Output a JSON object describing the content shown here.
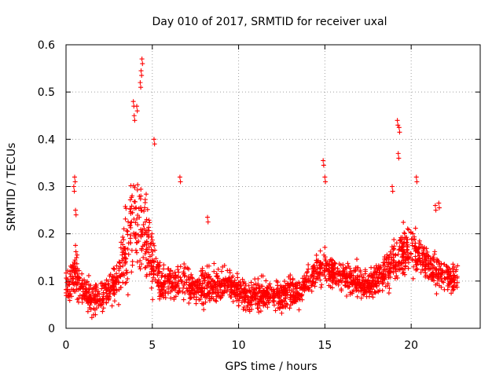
{
  "chart_data": {
    "type": "scatter",
    "title": "Day 010 of 2017, SRMTID for receiver uxal",
    "xlabel": "GPS time / hours",
    "ylabel": "SRMTID / TECUs",
    "xlim": [
      0,
      24
    ],
    "ylim": [
      0,
      0.6
    ],
    "xticks": [
      0,
      5,
      10,
      15,
      20
    ],
    "yticks": [
      0,
      0.1,
      0.2,
      0.3,
      0.4,
      0.5,
      0.6
    ],
    "xtick_labels": [
      "0",
      "5",
      "10",
      "15",
      "20"
    ],
    "ytick_labels": [
      "0",
      "0.1",
      "0.2",
      "0.3",
      "0.4",
      "0.5",
      "0.6"
    ],
    "grid": true,
    "marker": "+",
    "series": [
      {
        "name": "SRMTID",
        "color": "#ff0000",
        "envelope_hours": [
          0,
          0.5,
          1,
          1.5,
          2,
          2.5,
          3,
          3.5,
          4,
          4.5,
          5,
          5.5,
          6,
          6.5,
          7,
          7.5,
          8,
          8.5,
          9,
          9.5,
          10,
          10.5,
          11,
          11.5,
          12,
          12.5,
          13,
          13.5,
          14,
          14.5,
          15,
          15.5,
          16,
          16.5,
          17,
          17.5,
          18,
          18.5,
          19,
          19.5,
          20,
          20.5,
          21,
          21.5,
          22,
          22.5,
          22.7
        ],
        "envelope_median": [
          0.09,
          0.12,
          0.08,
          0.06,
          0.07,
          0.08,
          0.1,
          0.18,
          0.22,
          0.2,
          0.15,
          0.09,
          0.1,
          0.1,
          0.1,
          0.08,
          0.09,
          0.09,
          0.09,
          0.09,
          0.08,
          0.07,
          0.07,
          0.07,
          0.07,
          0.07,
          0.08,
          0.07,
          0.1,
          0.12,
          0.13,
          0.12,
          0.11,
          0.1,
          0.1,
          0.09,
          0.1,
          0.12,
          0.14,
          0.16,
          0.17,
          0.15,
          0.13,
          0.12,
          0.11,
          0.1,
          0.1
        ],
        "envelope_spread": [
          0.03,
          0.05,
          0.03,
          0.03,
          0.03,
          0.03,
          0.04,
          0.08,
          0.1,
          0.1,
          0.07,
          0.03,
          0.04,
          0.04,
          0.04,
          0.03,
          0.04,
          0.04,
          0.03,
          0.03,
          0.03,
          0.03,
          0.03,
          0.03,
          0.03,
          0.03,
          0.03,
          0.03,
          0.03,
          0.03,
          0.04,
          0.03,
          0.03,
          0.03,
          0.03,
          0.03,
          0.03,
          0.04,
          0.05,
          0.05,
          0.05,
          0.05,
          0.04,
          0.04,
          0.03,
          0.03,
          0.03
        ],
        "spikes": [
          {
            "x": 0.5,
            "y": 0.32
          },
          {
            "x": 0.45,
            "y": 0.3
          },
          {
            "x": 0.55,
            "y": 0.25
          },
          {
            "x": 3.9,
            "y": 0.48
          },
          {
            "x": 4.1,
            "y": 0.47
          },
          {
            "x": 4.3,
            "y": 0.52
          },
          {
            "x": 4.4,
            "y": 0.57
          },
          {
            "x": 4.35,
            "y": 0.545
          },
          {
            "x": 3.95,
            "y": 0.45
          },
          {
            "x": 5.1,
            "y": 0.4
          },
          {
            "x": 6.6,
            "y": 0.32
          },
          {
            "x": 8.2,
            "y": 0.235
          },
          {
            "x": 14.9,
            "y": 0.355
          },
          {
            "x": 15.0,
            "y": 0.32
          },
          {
            "x": 19.2,
            "y": 0.44
          },
          {
            "x": 19.3,
            "y": 0.425
          },
          {
            "x": 19.25,
            "y": 0.37
          },
          {
            "x": 20.3,
            "y": 0.32
          },
          {
            "x": 21.4,
            "y": 0.26
          },
          {
            "x": 21.6,
            "y": 0.265
          },
          {
            "x": 18.9,
            "y": 0.3
          }
        ]
      }
    ]
  }
}
